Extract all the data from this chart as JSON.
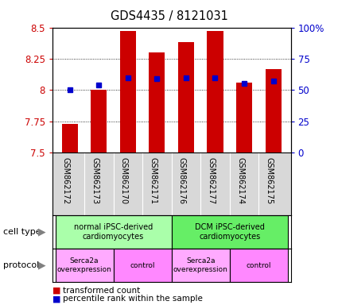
{
  "title": "GDS4435 / 8121031",
  "samples": [
    "GSM862172",
    "GSM862173",
    "GSM862170",
    "GSM862171",
    "GSM862176",
    "GSM862177",
    "GSM862174",
    "GSM862175"
  ],
  "red_values": [
    7.73,
    8.0,
    8.47,
    8.3,
    8.38,
    8.47,
    8.06,
    8.17
  ],
  "blue_values": [
    8.0,
    8.04,
    8.1,
    8.09,
    8.1,
    8.1,
    8.05,
    8.07
  ],
  "ylim": [
    7.5,
    8.5
  ],
  "yticks": [
    7.5,
    7.75,
    8.0,
    8.25,
    8.5
  ],
  "ytick_labels": [
    "7.5",
    "7.75",
    "8",
    "8.25",
    "8.5"
  ],
  "y2ticks": [
    0,
    25,
    50,
    75,
    100
  ],
  "y2tick_labels": [
    "0",
    "25",
    "50",
    "75",
    "100%"
  ],
  "red_color": "#cc0000",
  "blue_color": "#0000cc",
  "bar_width": 0.55,
  "cell_type_groups": [
    {
      "label": "normal iPSC-derived\ncardiomyocytes",
      "start": 0,
      "end": 3,
      "color": "#aaffaa"
    },
    {
      "label": "DCM iPSC-derived\ncardiomyocytes",
      "start": 4,
      "end": 7,
      "color": "#66ee66"
    }
  ],
  "protocol_groups": [
    {
      "label": "Serca2a\noverexpression",
      "start": 0,
      "end": 1,
      "color": "#ffaaff"
    },
    {
      "label": "control",
      "start": 2,
      "end": 3,
      "color": "#ff88ff"
    },
    {
      "label": "Serca2a\noverexpression",
      "start": 4,
      "end": 5,
      "color": "#ffaaff"
    },
    {
      "label": "control",
      "start": 6,
      "end": 7,
      "color": "#ff88ff"
    }
  ],
  "legend_red_label": "transformed count",
  "legend_blue_label": "percentile rank within the sample",
  "cell_type_label": "cell type",
  "protocol_label": "protocol",
  "plot_bg_color": "#ffffff",
  "sample_bg_color": "#d8d8d8"
}
